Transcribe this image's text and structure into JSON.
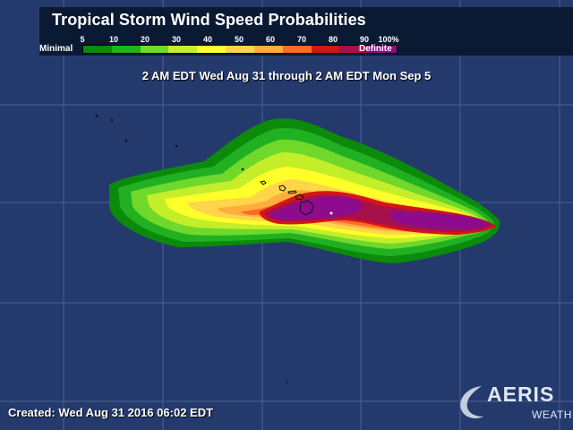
{
  "title": "Tropical Storm Wind Speed Probabilities",
  "legend": {
    "min_label": "Minimal",
    "max_label": "Definite",
    "ticks": [
      "5",
      "10",
      "20",
      "30",
      "40",
      "50",
      "60",
      "70",
      "80",
      "90",
      "100%"
    ],
    "colors": [
      "#0b8a0b",
      "#1fb41f",
      "#6fdc2a",
      "#c6ef2a",
      "#ffff2a",
      "#ffd54a",
      "#ffad3c",
      "#ff6a2a",
      "#d41616",
      "#a8104a",
      "#8e0b8e"
    ]
  },
  "period": "2 AM EDT Wed Aug 31 through 2 AM EDT Mon Sep 5",
  "created": "Created: Wed Aug 31 2016 06:02 EDT",
  "logo": {
    "name": "AERIS",
    "sub": "WEATHER"
  },
  "colors": {
    "ocean": "#243a6c",
    "grid": "#4d6396",
    "title_bg": "#0b1a33",
    "accent": "#8fd8ff"
  }
}
